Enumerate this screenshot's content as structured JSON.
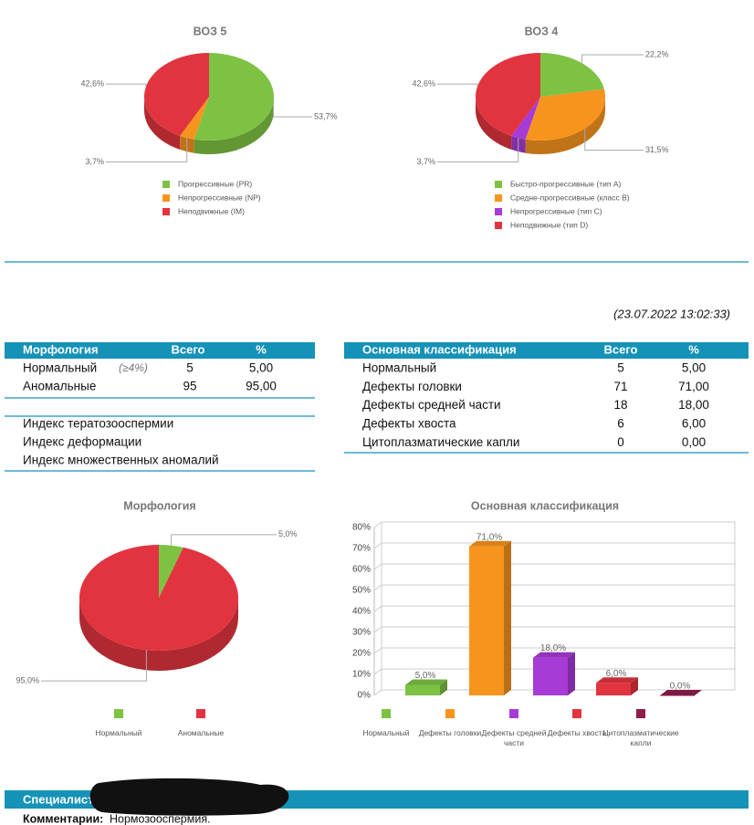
{
  "chart_data": [
    {
      "type": "pie",
      "title": "ВОЗ 5",
      "categories": [
        "Прогрессивные (PR)",
        "Непрогрессивные (NP)",
        "Неподвижные (IM)"
      ],
      "values": [
        53.7,
        3.7,
        42.6
      ],
      "value_labels": [
        "53,7%",
        "3,7%",
        "42,6%"
      ],
      "colors": [
        "#7dc243",
        "#f7941d",
        "#e1343f"
      ]
    },
    {
      "type": "pie",
      "title": "ВОЗ 4",
      "categories": [
        "Быстро-прогрессивные (тип A)",
        "Средне-прогрессивные (класс B)",
        "Непрогрессивные (тип C)",
        "Неподвижные (тип D)"
      ],
      "values": [
        22.2,
        31.5,
        3.7,
        42.6
      ],
      "value_labels": [
        "22,2%",
        "31,5%",
        "3,7%",
        "42,6%"
      ],
      "colors": [
        "#7dc243",
        "#f7941d",
        "#a63bd6",
        "#e1343f"
      ]
    },
    {
      "type": "pie",
      "title": "Морфология",
      "categories": [
        "Нормальный",
        "Аномальные"
      ],
      "values": [
        5,
        95
      ],
      "value_labels": [
        "5,0%",
        "95,0%"
      ],
      "colors": [
        "#7dc243",
        "#e1343f"
      ]
    },
    {
      "type": "bar",
      "title": "Основная классификация",
      "categories": [
        "Нормальный",
        "Дефекты головки",
        "Дефекты средней части",
        "Дефекты хвоста",
        "Цитоплазматические капли"
      ],
      "values": [
        5,
        71,
        18,
        6,
        0
      ],
      "value_labels": [
        "5,0%",
        "71,0%",
        "18,0%",
        "6,0%",
        "0,0%"
      ],
      "colors": [
        "#7dc243",
        "#f7941d",
        "#a63bd6",
        "#e1343f",
        "#8e1d4c"
      ],
      "ylim": [
        0,
        80
      ],
      "yticks": [
        {
          "value": 0,
          "label": "0%"
        },
        {
          "value": 10,
          "label": "10%"
        },
        {
          "value": 20,
          "label": "20%"
        },
        {
          "value": 30,
          "label": "30%"
        },
        {
          "value": 40,
          "label": "40%"
        },
        {
          "value": 50,
          "label": "50%"
        },
        {
          "value": 60,
          "label": "60%"
        },
        {
          "value": 70,
          "label": "70%"
        },
        {
          "value": 80,
          "label": "80%"
        }
      ],
      "grid": true
    }
  ],
  "timestamp": "(23.07.2022  13:02:33)",
  "morphology_table": {
    "headers": [
      "Морфология",
      "Всего",
      "%"
    ],
    "rows": [
      {
        "cells": [
          "Нормальный",
          "5",
          "5,00"
        ],
        "note": "(≥4%)"
      },
      {
        "cells": [
          "Аномальные",
          "95",
          "95,00"
        ]
      }
    ]
  },
  "indices": [
    "Индекс тератозооспермии",
    "Индекс деформации",
    "Индекс множественных аномалий"
  ],
  "classification_table": {
    "headers": [
      "Основная классификация",
      "Всего",
      "%"
    ],
    "rows": [
      [
        "Нормальный",
        "5",
        "5,00"
      ],
      [
        "Дефекты головки",
        "71",
        "71,00"
      ],
      [
        "Дефекты средней части",
        "18",
        "18,00"
      ],
      [
        "Дефекты хвоста",
        "6",
        "6,00"
      ],
      [
        "Цитоплазматические капли",
        "0",
        "0,00"
      ]
    ]
  },
  "footer": {
    "specialist_label": "Специалист:",
    "comment_label": "Комментарии:",
    "comment": "Нормозооспермия."
  }
}
